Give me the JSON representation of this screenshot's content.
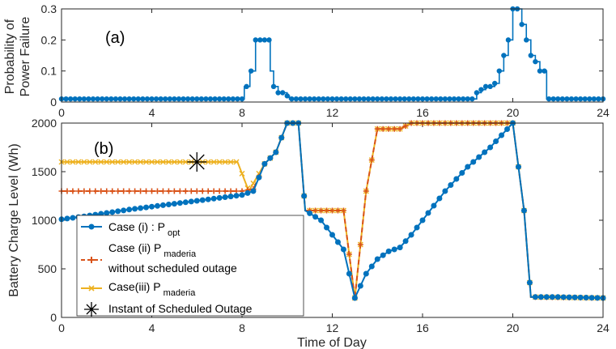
{
  "chart_data": [
    {
      "id": "a",
      "type": "line",
      "panel_label": "(a)",
      "ylabel_line1": "Probability of",
      "ylabel_line2": "Power Failure",
      "xlim": [
        0,
        24
      ],
      "ylim": [
        0,
        0.3
      ],
      "xticks": [
        "0",
        "4",
        "8",
        "12",
        "16",
        "20",
        "24"
      ],
      "yticks": [
        "0",
        "0.1",
        "0.2",
        "0.3"
      ],
      "series": [
        {
          "name": "Probability of Power Failure",
          "color": "#0072BD",
          "step": true,
          "points": [
            [
              0,
              0.01
            ],
            [
              8.0,
              0.01
            ],
            [
              8.1,
              0.05
            ],
            [
              8.35,
              0.1
            ],
            [
              8.6,
              0.2
            ],
            [
              8.8,
              0.2
            ],
            [
              9.0,
              0.2
            ],
            [
              9.25,
              0.1
            ],
            [
              9.4,
              0.05
            ],
            [
              9.6,
              0.03
            ],
            [
              9.8,
              0.03
            ],
            [
              10.0,
              0.02
            ],
            [
              10.1,
              0.01
            ],
            [
              18.3,
              0.01
            ],
            [
              18.4,
              0.03
            ],
            [
              18.6,
              0.04
            ],
            [
              18.8,
              0.05
            ],
            [
              19.0,
              0.05
            ],
            [
              19.2,
              0.06
            ],
            [
              19.4,
              0.1
            ],
            [
              19.6,
              0.15
            ],
            [
              19.8,
              0.2
            ],
            [
              20.0,
              0.3
            ],
            [
              20.2,
              0.3
            ],
            [
              20.4,
              0.25
            ],
            [
              20.6,
              0.2
            ],
            [
              20.8,
              0.15
            ],
            [
              21.0,
              0.13
            ],
            [
              21.2,
              0.1
            ],
            [
              21.4,
              0.1
            ],
            [
              21.5,
              0.01
            ],
            [
              24,
              0.01
            ]
          ]
        }
      ]
    },
    {
      "id": "b",
      "type": "line",
      "panel_label": "(b)",
      "xlabel": "Time of Day",
      "ylabel": "Battery Charge Level (Wh)",
      "xlim": [
        0,
        24
      ],
      "ylim": [
        0,
        2000
      ],
      "xticks": [
        "0",
        "4",
        "8",
        "12",
        "16",
        "20",
        "24"
      ],
      "yticks": [
        "0",
        "500",
        "1000",
        "1500",
        "2000"
      ],
      "series": [
        {
          "name": "Case (i) : P",
          "subscript": "opt",
          "color": "#0072BD",
          "style": "solid-dot",
          "points": [
            [
              0,
              1010
            ],
            [
              1,
              1040
            ],
            [
              2,
              1075
            ],
            [
              3,
              1110
            ],
            [
              4,
              1140
            ],
            [
              5,
              1170
            ],
            [
              6,
              1200
            ],
            [
              7,
              1230
            ],
            [
              8,
              1260
            ],
            [
              8.5,
              1300
            ],
            [
              9.0,
              1580
            ],
            [
              9.5,
              1700
            ],
            [
              10.0,
              2000
            ],
            [
              10.5,
              2000
            ],
            [
              10.8,
              1100
            ],
            [
              11.5,
              1000
            ],
            [
              12.0,
              850
            ],
            [
              12.5,
              700
            ],
            [
              13.0,
              200
            ],
            [
              13.5,
              450
            ],
            [
              14.0,
              600
            ],
            [
              14.5,
              680
            ],
            [
              15.0,
              720
            ],
            [
              15.5,
              850
            ],
            [
              16.0,
              1000
            ],
            [
              17.0,
              1300
            ],
            [
              18.0,
              1550
            ],
            [
              19.0,
              1750
            ],
            [
              20.0,
              2000
            ],
            [
              20.5,
              1100
            ],
            [
              20.8,
              210
            ],
            [
              22.0,
              210
            ],
            [
              23.0,
              205
            ],
            [
              24.0,
              200
            ]
          ]
        },
        {
          "name": "Case (ii) P",
          "subscript": "maderia",
          "name_line2": "without scheduled outage",
          "color": "#D95319",
          "style": "dashed-plus",
          "points": [
            [
              0,
              1300
            ],
            [
              8.0,
              1300
            ],
            [
              8.5,
              1320
            ],
            [
              9.0,
              1580
            ],
            [
              9.5,
              1700
            ],
            [
              10.0,
              2000
            ],
            [
              10.5,
              2000
            ],
            [
              10.8,
              1100
            ],
            [
              12.5,
              1100
            ],
            [
              13.0,
              200
            ],
            [
              13.5,
              1300
            ],
            [
              14.0,
              1940
            ],
            [
              15.0,
              1940
            ],
            [
              15.5,
              2000
            ],
            [
              20.0,
              2000
            ],
            [
              20.5,
              1100
            ],
            [
              20.8,
              210
            ],
            [
              24.0,
              200
            ]
          ]
        },
        {
          "name": "Case(iii) P",
          "subscript": "maderia",
          "color": "#EDB120",
          "style": "solid-x",
          "points": [
            [
              0,
              1600
            ],
            [
              7.8,
              1600
            ],
            [
              8.3,
              1300
            ],
            [
              9.0,
              1580
            ],
            [
              9.5,
              1700
            ],
            [
              10.0,
              2000
            ],
            [
              10.5,
              2000
            ],
            [
              10.8,
              1100
            ],
            [
              12.5,
              1100
            ],
            [
              13.0,
              200
            ],
            [
              13.5,
              1300
            ],
            [
              14.0,
              1940
            ],
            [
              15.0,
              1940
            ],
            [
              15.5,
              2000
            ],
            [
              20.0,
              2000
            ],
            [
              20.5,
              1100
            ],
            [
              20.8,
              210
            ],
            [
              24.0,
              200
            ]
          ]
        }
      ],
      "annotation": {
        "name": "Instant of Scheduled Outage",
        "x": 6,
        "y": 1600
      },
      "legend": {
        "placement": "lower-left",
        "entries": [
          {
            "text": "Case (i) : P",
            "sub": "opt"
          },
          {
            "text": "Case (ii) P",
            "sub": "maderia",
            "line2": "without scheduled outage"
          },
          {
            "text": "Case(iii) P",
            "sub": "maderia"
          },
          {
            "text": "Instant of Scheduled Outage"
          }
        ]
      }
    }
  ]
}
